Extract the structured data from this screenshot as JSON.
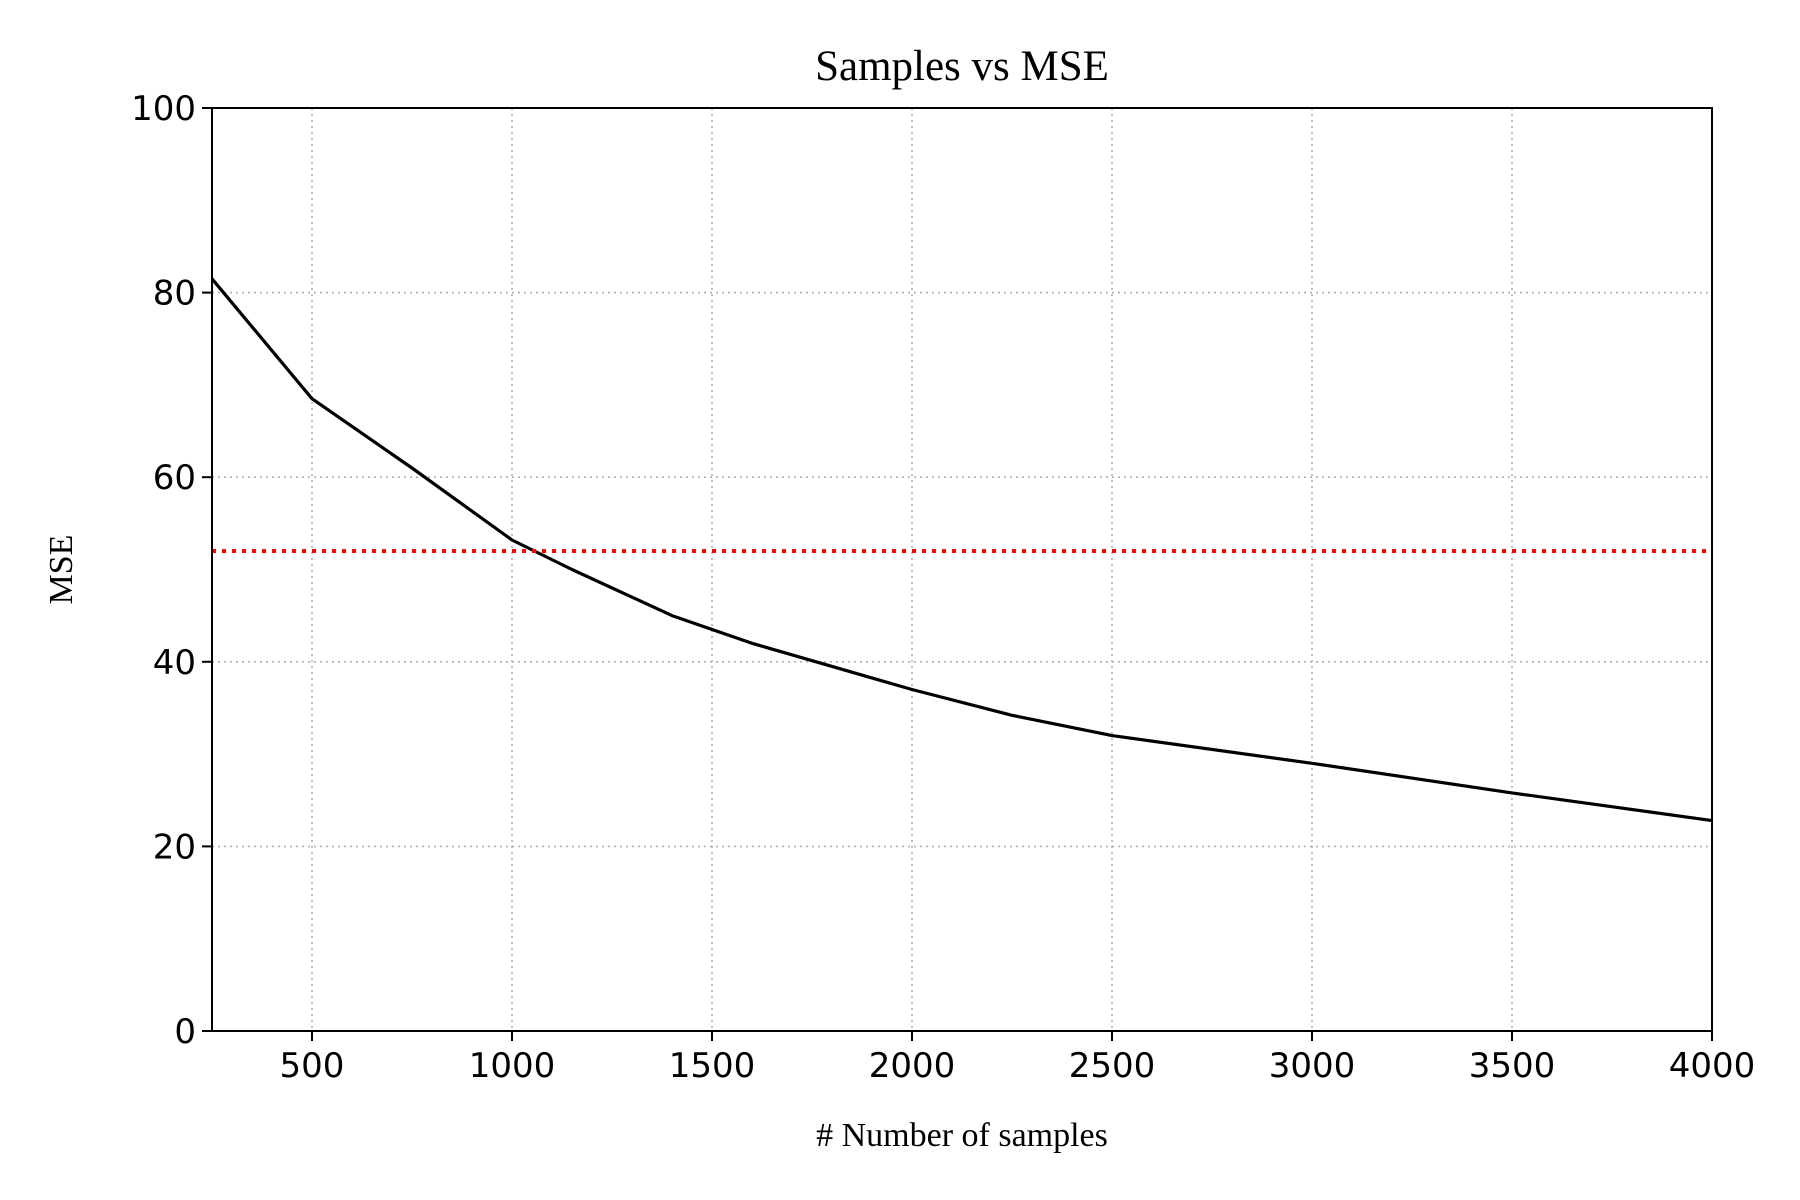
{
  "chart_data": {
    "type": "line",
    "title": "Samples vs MSE",
    "xlabel": "# Number of samples",
    "ylabel": "MSE",
    "xlim": [
      250,
      4000
    ],
    "ylim": [
      0,
      100
    ],
    "x_ticks": [
      500,
      1000,
      1500,
      2000,
      2500,
      3000,
      3500,
      4000
    ],
    "y_ticks": [
      0,
      20,
      40,
      60,
      80,
      100
    ],
    "grid": true,
    "series": [
      {
        "color": "#000000",
        "style": "solid",
        "x": [
          250,
          500,
          750,
          1000,
          1150,
          1400,
          1600,
          2000,
          2250,
          2500,
          3000,
          3500,
          4000
        ],
        "y": [
          81.5,
          68.5,
          61.0,
          53.2,
          50.0,
          45.0,
          42.0,
          37.0,
          34.2,
          32.0,
          29.0,
          25.8,
          22.8
        ]
      },
      {
        "color": "#ff0000",
        "style": "dotted",
        "x": [
          250,
          4000
        ],
        "y": [
          52,
          52
        ]
      }
    ]
  }
}
